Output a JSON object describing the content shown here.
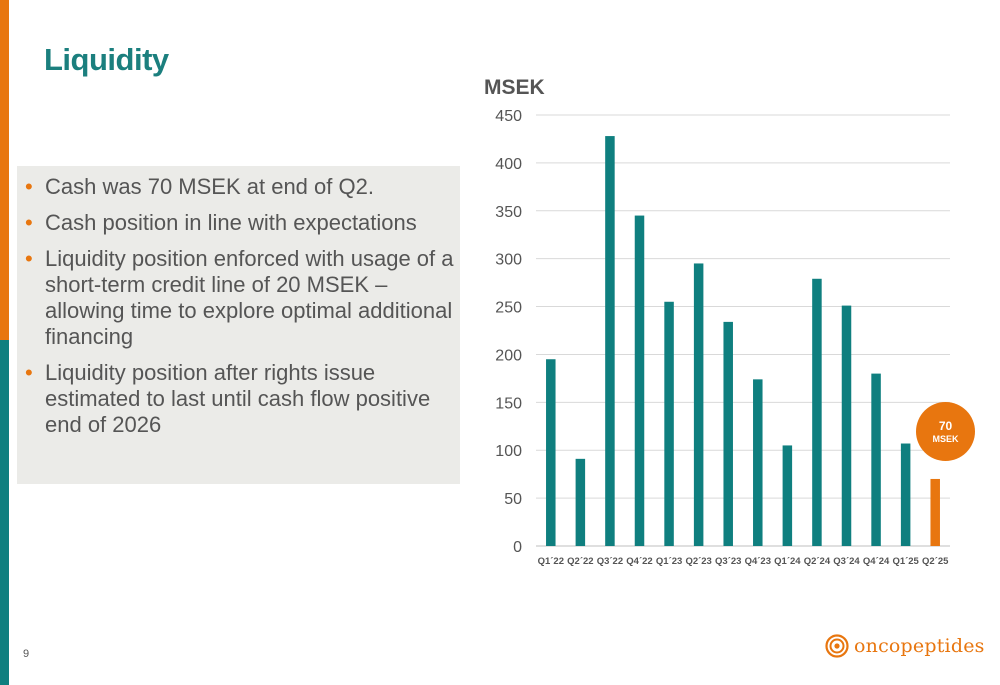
{
  "page": {
    "title": "Liquidity",
    "page_number": "9",
    "bullets": [
      "Cash was 70 MSEK at end of Q2.",
      "Cash position in line with expectations",
      "Liquidity position enforced with usage of a short-term credit line of 20 MSEK – allowing time to explore optimal additional financing",
      "Liquidity position after rights issue estimated to last until cash flow positive end of 2026"
    ],
    "callout": {
      "value": "70",
      "unit": "MSEK"
    },
    "logo": {
      "text": "oncopeptides",
      "icon": "spiral-logo-icon"
    }
  },
  "colors": {
    "teal": "#0f7f7f",
    "orange": "#e8760f",
    "title_teal": "#1b7f7e",
    "panel_bg": "#ebebe8",
    "grid": "#d9d9d9",
    "text": "#555555"
  },
  "chart_data": {
    "type": "bar",
    "categories": [
      "Q1´22",
      "Q2´22",
      "Q3´22",
      "Q4´22",
      "Q1´23",
      "Q2´23",
      "Q3´23",
      "Q4´23",
      "Q1´24",
      "Q2´24",
      "Q3´24",
      "Q4´24",
      "Q1´25",
      "Q2´25"
    ],
    "values": [
      195,
      91,
      428,
      345,
      255,
      295,
      234,
      174,
      105,
      279,
      251,
      180,
      107,
      70
    ],
    "highlight_index": 13,
    "ylabel": "MSEK",
    "ylim": [
      0,
      450
    ],
    "yticks": [
      0,
      50,
      100,
      150,
      200,
      250,
      300,
      350,
      400,
      450
    ],
    "grid": true
  }
}
